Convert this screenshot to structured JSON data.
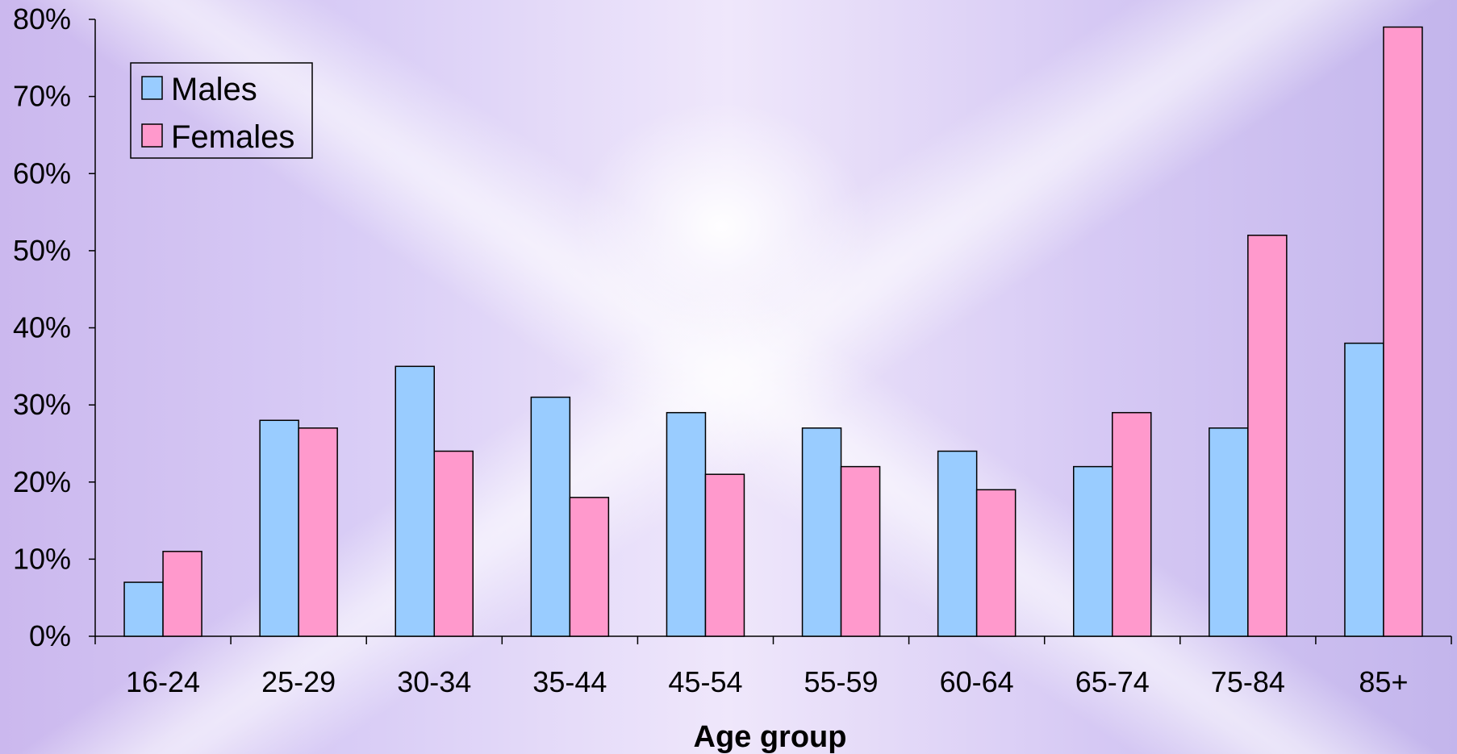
{
  "chart_data": {
    "type": "bar",
    "title": "",
    "xlabel": "Age group",
    "ylabel": "",
    "categories": [
      "16-24",
      "25-29",
      "30-34",
      "35-44",
      "45-54",
      "55-59",
      "60-64",
      "65-74",
      "75-84",
      "85+"
    ],
    "series": [
      {
        "name": "Males",
        "values": [
          7,
          28,
          35,
          31,
          29,
          27,
          24,
          22,
          27,
          38
        ],
        "color": "#99ccff"
      },
      {
        "name": "Females",
        "values": [
          11,
          27,
          24,
          18,
          21,
          22,
          19,
          29,
          52,
          79
        ],
        "color": "#ff99cc"
      }
    ],
    "ylim": [
      0,
      80
    ],
    "y_ticks": [
      "0%",
      "10%",
      "20%",
      "30%",
      "40%",
      "50%",
      "60%",
      "70%",
      "80%"
    ],
    "grid": false,
    "legend_position": "top-left"
  }
}
